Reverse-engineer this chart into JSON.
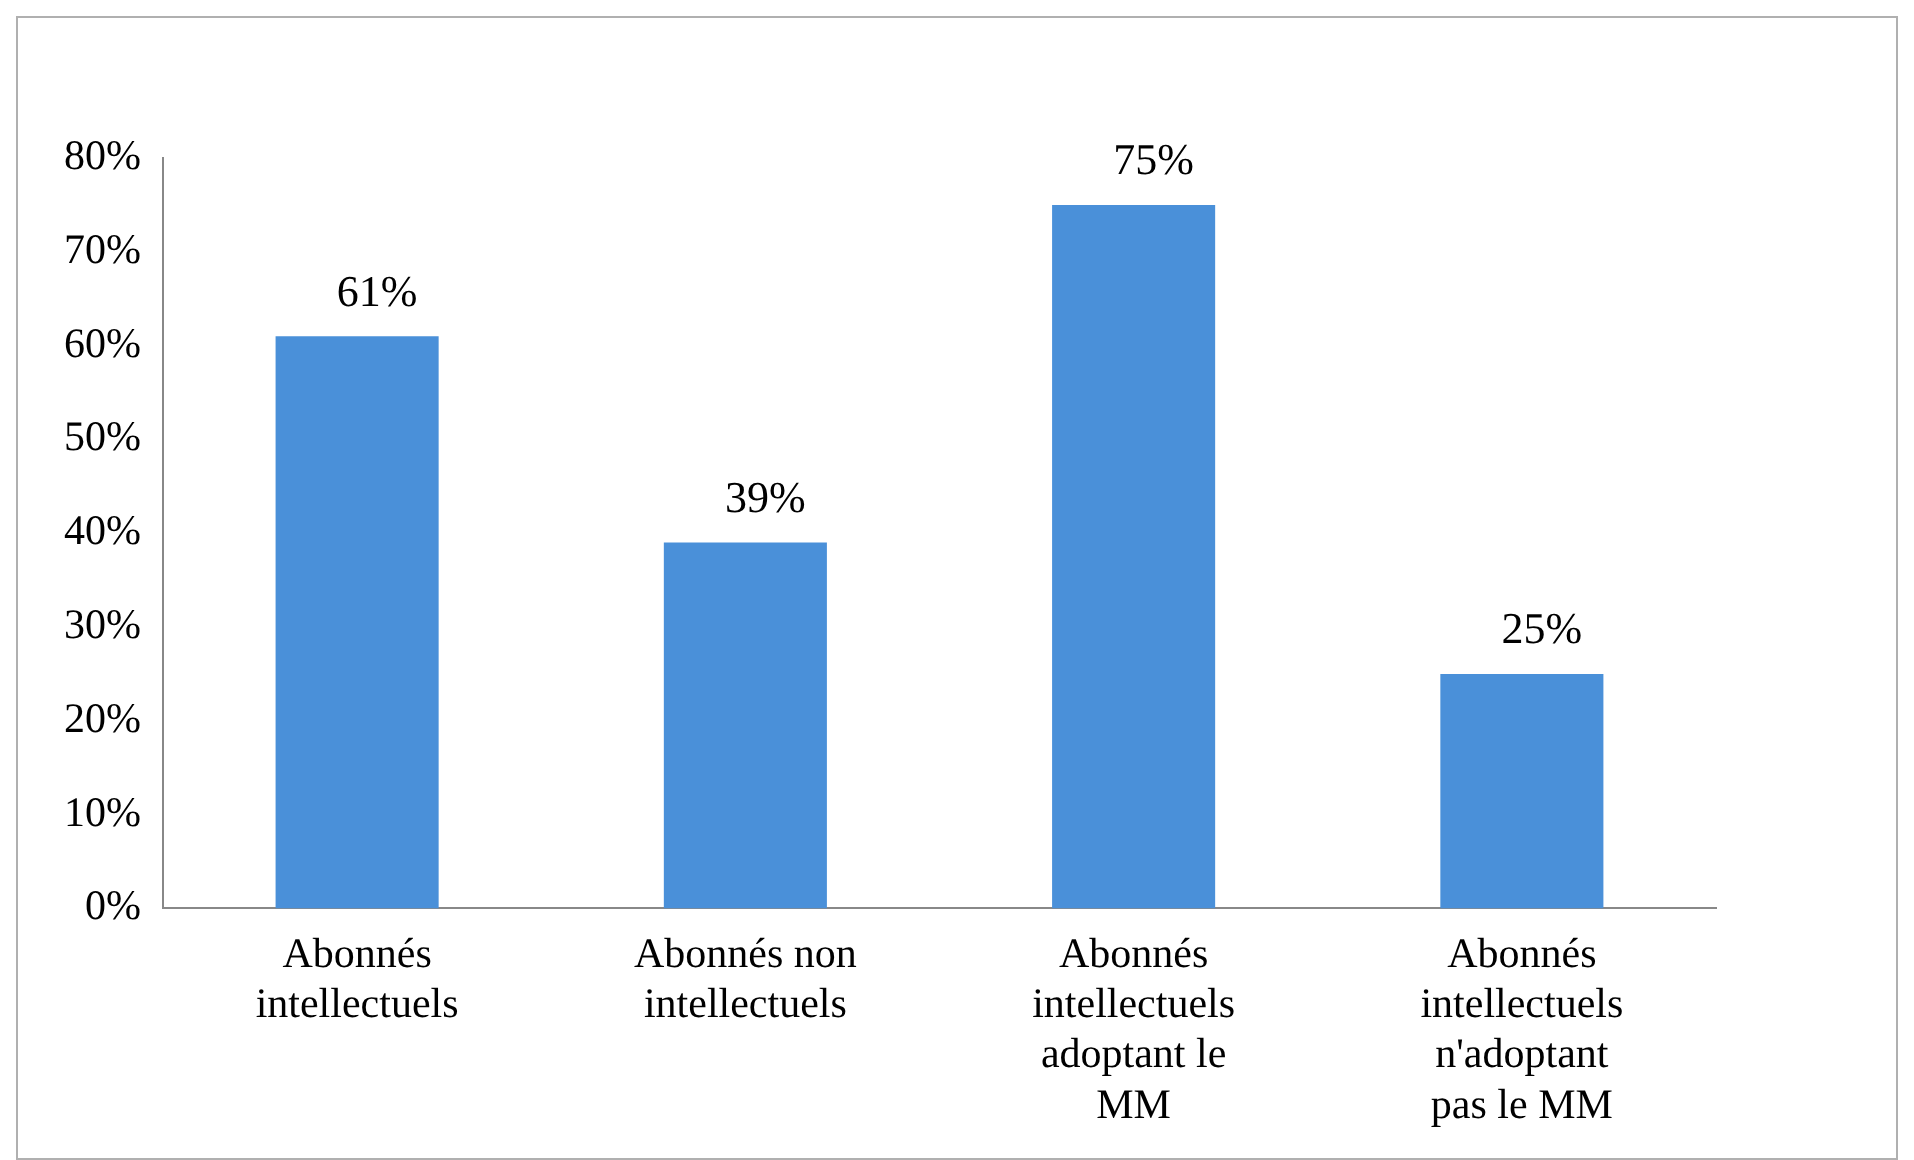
{
  "chart_data": {
    "type": "bar",
    "categories": [
      "Abonnés intellectuels",
      "Abonnés non intellectuels",
      "Abonnés intellectuels adoptant le MM",
      "Abonnés intellectuels n'adoptant pas le MM"
    ],
    "values": [
      61,
      39,
      75,
      25
    ],
    "color": "#4a90d9",
    "ylim": [
      0,
      80
    ],
    "yticks": [
      {
        "value": 0,
        "label": "0%"
      },
      {
        "value": 10,
        "label": "10%"
      },
      {
        "value": 20,
        "label": "20%"
      },
      {
        "value": 30,
        "label": "30%"
      },
      {
        "value": 40,
        "label": "40%"
      },
      {
        "value": 50,
        "label": "50%"
      },
      {
        "value": 60,
        "label": "60%"
      },
      {
        "value": 70,
        "label": "70%"
      },
      {
        "value": 80,
        "label": "80%"
      }
    ],
    "value_labels": [
      "61%",
      "39%",
      "75%",
      "25%"
    ],
    "grid": false,
    "legend": false
  }
}
